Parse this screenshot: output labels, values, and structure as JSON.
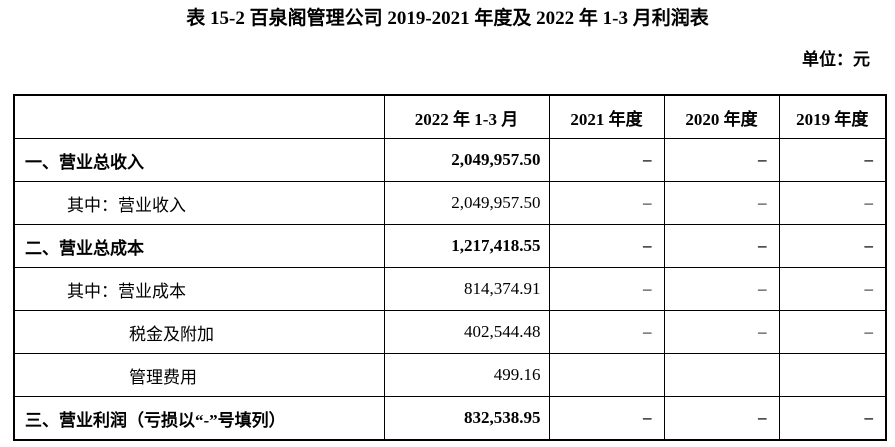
{
  "document": {
    "title": "表 15-2 百泉阁管理公司 2019-2021 年度及 2022 年 1-3 月利润表",
    "unit_label": "单位：元"
  },
  "table": {
    "columns": [
      "",
      "2022 年 1-3 月",
      "2021 年度",
      "2020 年度",
      "2019 年度"
    ],
    "rows": [
      {
        "label": "一、营业总收入",
        "indent": 0,
        "bold": true,
        "values": [
          "2,049,957.50",
          "–",
          "–",
          "–"
        ]
      },
      {
        "label": "其中：营业收入",
        "indent": 1,
        "bold": false,
        "values": [
          "2,049,957.50",
          "–",
          "–",
          "–"
        ]
      },
      {
        "label": "二、营业总成本",
        "indent": 0,
        "bold": true,
        "values": [
          "1,217,418.55",
          "–",
          "–",
          "–"
        ]
      },
      {
        "label": "其中：营业成本",
        "indent": 1,
        "bold": false,
        "values": [
          "814,374.91",
          "–",
          "–",
          "–"
        ]
      },
      {
        "label": "税金及附加",
        "indent": 2,
        "bold": false,
        "values": [
          "402,544.48",
          "–",
          "–",
          "–"
        ]
      },
      {
        "label": "管理费用",
        "indent": 2,
        "bold": false,
        "values": [
          "499.16",
          "",
          "",
          ""
        ]
      },
      {
        "label": "三、营业利润（亏损以“-”号填列）",
        "indent": 0,
        "bold": true,
        "values": [
          "832,538.95",
          "–",
          "–",
          "–"
        ]
      }
    ]
  }
}
